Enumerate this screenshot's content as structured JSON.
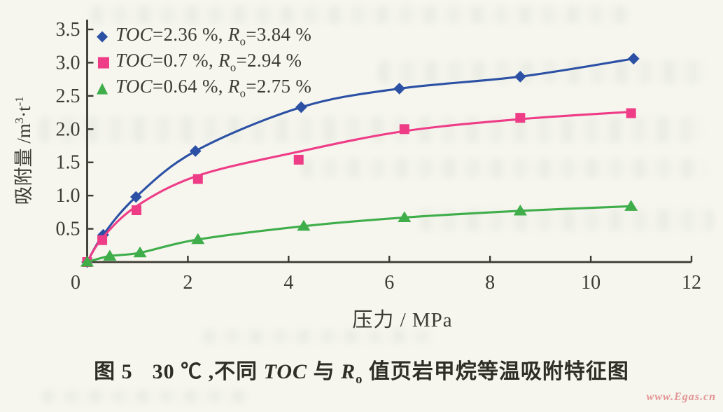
{
  "figure": {
    "caption": {
      "fig_label": "图 5",
      "part1": "30 ℃ ,不同 ",
      "toc": "TOC",
      "part2": " 与 ",
      "r": "R",
      "r_sub": "o",
      "part3": " 值页岩甲烷等温吸附特征图"
    },
    "watermark": "www.Egas.cn",
    "background_color": "#f6f6ef",
    "axis_color": "#3a3a31",
    "text_color": "#3c3c33"
  },
  "legend": {
    "items": [
      {
        "symbol": "◆",
        "color": "#2b50a4",
        "toc": "TOC",
        "toc_eq": "=2.36 %, ",
        "r": "R",
        "r_sub": "o",
        "r_eq": "=3.84 %"
      },
      {
        "symbol": "■",
        "color": "#ee3c87",
        "toc": "TOC",
        "toc_eq": "=0.7 %, ",
        "r": "R",
        "r_sub": "o",
        "r_eq": "=2.94 %"
      },
      {
        "symbol": "▲",
        "color": "#3fad4a",
        "toc": "TOC",
        "toc_eq": "=0.64 %, ",
        "r": "R",
        "r_sub": "o",
        "r_eq": "=2.75 %"
      }
    ]
  },
  "axes": {
    "x_title": "压力 / MPa",
    "y_title_parts": {
      "main": "吸附量 /m",
      "sup1": "3",
      "mid": "·t",
      "sup2": "-1"
    }
  },
  "chart_data": {
    "type": "line",
    "title": "30 ℃ 不同 TOC 与 Ro 值页岩甲烷等温吸附特征图",
    "xlabel": "压力 / MPa",
    "ylabel": "吸附量 / m³·t⁻¹",
    "xlim": [
      0,
      12
    ],
    "ylim": [
      0,
      3.5
    ],
    "grid": false,
    "legend_position": "top-left",
    "x_tick_labels": [
      "0",
      "2",
      "4",
      "6",
      "8",
      "10",
      "12"
    ],
    "y_tick_labels": [
      "0.5",
      "1.0",
      "1.5",
      "2.0",
      "2.5",
      "3.0",
      "3.5"
    ],
    "series": [
      {
        "name": "TOC=2.36 %, Ro=3.84 %",
        "marker": "diamond",
        "color": "#2b50a4",
        "points": [
          [
            0,
            0
          ],
          [
            0.32,
            0.41
          ],
          [
            0.97,
            0.98
          ],
          [
            2.15,
            1.67
          ],
          [
            4.25,
            2.33
          ],
          [
            6.2,
            2.61
          ],
          [
            8.6,
            2.79
          ],
          [
            10.85,
            3.06
          ]
        ]
      },
      {
        "name": "TOC=0.7 %, Ro=2.94 %",
        "marker": "square",
        "color": "#ee3c87",
        "points": [
          [
            0,
            0
          ],
          [
            0.3,
            0.33
          ],
          [
            0.98,
            0.78
          ],
          [
            2.2,
            1.25
          ],
          [
            4.2,
            1.54
          ],
          [
            6.3,
            2.0
          ],
          [
            8.6,
            2.17
          ],
          [
            10.8,
            2.24
          ]
        ],
        "curve": [
          [
            0,
            0
          ],
          [
            0.3,
            0.36
          ],
          [
            0.98,
            0.84
          ],
          [
            2.2,
            1.3
          ],
          [
            4.2,
            1.66
          ],
          [
            6.3,
            1.97
          ],
          [
            8.6,
            2.15
          ],
          [
            10.8,
            2.26
          ]
        ]
      },
      {
        "name": "TOC=0.64 %, Ro=2.75 %",
        "marker": "triangle",
        "color": "#3fad4a",
        "points": [
          [
            0,
            0
          ],
          [
            0.45,
            0.09
          ],
          [
            1.05,
            0.14
          ],
          [
            2.2,
            0.34
          ],
          [
            4.3,
            0.54
          ],
          [
            6.3,
            0.67
          ],
          [
            8.6,
            0.77
          ],
          [
            10.8,
            0.84
          ]
        ]
      }
    ]
  }
}
